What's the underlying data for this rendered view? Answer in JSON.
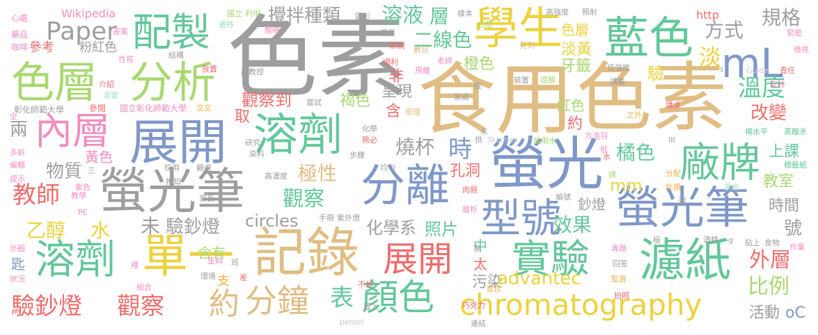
{
  "palette": {
    "gray": "#9e9e9e",
    "tan": "#e0bd83",
    "green": "#a9d871",
    "teal": "#63c79b",
    "blue": "#7f98c9",
    "pink": "#ef8ec0",
    "mint": "#a7e0c3",
    "lightgray": "#c8c8c8",
    "orange": "#f3b04a",
    "red": "#ef6d6d",
    "yellow": "#ecd23f",
    "purple": "#c89ee6",
    "sky": "#9bc8e8"
  },
  "words": [
    {
      "t": "色素",
      "c": "gray"
    },
    {
      "t": "食用",
      "c": "tan"
    },
    {
      "t": "色素",
      "c": "tan"
    },
    {
      "t": "螢光",
      "c": "blue"
    },
    {
      "t": "螢光筆",
      "c": "gray"
    },
    {
      "t": "螢光筆",
      "c": "blue"
    },
    {
      "t": "展開",
      "c": "blue"
    },
    {
      "t": "溶劑",
      "c": "teal"
    },
    {
      "t": "記錄",
      "c": "tan"
    },
    {
      "t": "單一",
      "c": "yellow"
    },
    {
      "t": "色層",
      "c": "green"
    },
    {
      "t": "分析",
      "c": "green"
    },
    {
      "t": "配製",
      "c": "teal"
    },
    {
      "t": "學生",
      "c": "yellow"
    },
    {
      "t": "藍色",
      "c": "teal"
    },
    {
      "t": "mL",
      "c": "blue"
    },
    {
      "t": "分離",
      "c": "blue"
    },
    {
      "t": "型號",
      "c": "blue"
    },
    {
      "t": "濾紙",
      "c": "teal"
    },
    {
      "t": "廠牌",
      "c": "teal"
    },
    {
      "t": "內層",
      "c": "pink"
    },
    {
      "t": "實驗",
      "c": "teal"
    },
    {
      "t": "展開",
      "c": "red"
    },
    {
      "t": "溶劑",
      "c": "teal"
    },
    {
      "t": "顏色",
      "c": "teal"
    },
    {
      "t": "分鐘",
      "c": "tan"
    },
    {
      "t": "約",
      "c": "tan"
    },
    {
      "t": "chromatography",
      "c": "yellow"
    },
    {
      "t": "Paper",
      "c": "gray"
    },
    {
      "t": "攪拌種類",
      "c": "gray"
    },
    {
      "t": "溶液",
      "c": "teal"
    },
    {
      "t": "層",
      "c": "teal"
    },
    {
      "t": "二線色",
      "c": "teal"
    },
    {
      "t": "方式",
      "c": "gray"
    },
    {
      "t": "規格",
      "c": "gray"
    },
    {
      "t": "色層",
      "c": "yellow"
    },
    {
      "t": "淡黃",
      "c": "yellow"
    },
    {
      "t": "淡",
      "c": "yellow"
    },
    {
      "t": "溫度",
      "c": "teal"
    },
    {
      "t": "改變",
      "c": "red"
    },
    {
      "t": "驗",
      "c": "yellow"
    },
    {
      "t": "牙籤",
      "c": "green"
    },
    {
      "t": "橙色",
      "c": "green"
    },
    {
      "t": "觀察到",
      "c": "red"
    },
    {
      "t": "褐色",
      "c": "green"
    },
    {
      "t": "呈現",
      "c": "gray"
    },
    {
      "t": "非",
      "c": "red"
    },
    {
      "t": "含",
      "c": "red"
    },
    {
      "t": "取",
      "c": "red"
    },
    {
      "t": "紅色",
      "c": "green"
    },
    {
      "t": "約",
      "c": "red"
    },
    {
      "t": "燒杯",
      "c": "gray"
    },
    {
      "t": "時",
      "c": "blue"
    },
    {
      "t": "橘色",
      "c": "teal"
    },
    {
      "t": "上課",
      "c": "teal"
    },
    {
      "t": "教室",
      "c": "green"
    },
    {
      "t": "時間",
      "c": "gray"
    },
    {
      "t": "號",
      "c": "gray"
    },
    {
      "t": "外層",
      "c": "red"
    },
    {
      "t": "比例",
      "c": "green"
    },
    {
      "t": "活動",
      "c": "gray"
    },
    {
      "t": "oC",
      "c": "blue"
    },
    {
      "t": "物質",
      "c": "gray"
    },
    {
      "t": "黃色",
      "c": "pink"
    },
    {
      "t": "教師",
      "c": "red"
    },
    {
      "t": "極性",
      "c": "tan"
    },
    {
      "t": "觀察",
      "c": "teal"
    },
    {
      "t": "孔洞",
      "c": "red"
    },
    {
      "t": "mm",
      "c": "yellow"
    },
    {
      "t": "效果",
      "c": "teal"
    },
    {
      "t": "鈔燈",
      "c": "gray"
    },
    {
      "t": "乙醇",
      "c": "yellow"
    },
    {
      "t": "水",
      "c": "yellow"
    },
    {
      "t": "未",
      "c": "gray"
    },
    {
      "t": "驗鈔燈",
      "c": "gray"
    },
    {
      "t": "circles",
      "c": "gray"
    },
    {
      "t": "化學系",
      "c": "gray"
    },
    {
      "t": "照片",
      "c": "teal"
    },
    {
      "t": "中",
      "c": "teal"
    },
    {
      "t": "太",
      "c": "red"
    },
    {
      "t": "污染",
      "c": "gray"
    },
    {
      "t": "表",
      "c": "teal"
    },
    {
      "t": "advantec",
      "c": "yellow"
    },
    {
      "t": "驗鈔燈",
      "c": "red"
    },
    {
      "t": "觀察",
      "c": "red"
    },
    {
      "t": "含有",
      "c": "green"
    },
    {
      "t": "支",
      "c": "orange"
    },
    {
      "t": "匙",
      "c": "blue"
    },
    {
      "t": "Wikipedia",
      "c": "pink"
    },
    {
      "t": "粉紅色",
      "c": "gray"
    },
    {
      "t": "參考",
      "c": "red"
    },
    {
      "t": "http",
      "c": "red"
    },
    {
      "t": "彰化師範大學",
      "c": "gray"
    },
    {
      "t": "國立彰化師範大學",
      "c": "pink"
    },
    {
      "t": "參閱",
      "c": "red"
    },
    {
      "t": "心處",
      "c": "pink"
    },
    {
      "t": "藥品",
      "c": "pink"
    },
    {
      "t": "咖啡",
      "c": "pink"
    },
    {
      "t": "溶液",
      "c": "teal"
    },
    {
      "t": "國立",
      "c": "green"
    },
    {
      "t": "利用",
      "c": "green"
    },
    {
      "t": "遷移",
      "c": "mint"
    },
    {
      "t": "酸梅",
      "c": "pink"
    },
    {
      "t": "圖形",
      "c": "gray"
    },
    {
      "t": "樣本",
      "c": "gray"
    },
    {
      "t": "高強度",
      "c": "gray"
    },
    {
      "t": "照射",
      "c": "gray"
    },
    {
      "t": "緊密",
      "c": "pink"
    },
    {
      "t": "微亮",
      "c": "pink"
    },
    {
      "t": "責任",
      "c": "red"
    },
    {
      "t": "Guide",
      "c": "lightgray"
    },
    {
      "t": "安排",
      "c": "pink"
    },
    {
      "t": "講桌",
      "c": "red"
    },
    {
      "t": "楊水平",
      "c": "teal"
    },
    {
      "t": "蒸餾水",
      "c": "teal"
    },
    {
      "t": "標籤紙",
      "c": "teal"
    },
    {
      "t": "黑色",
      "c": "mint"
    },
    {
      "t": "吐團",
      "c": "orange"
    },
    {
      "t": "分配",
      "c": "orange"
    },
    {
      "t": "方浩羽",
      "c": "pink"
    },
    {
      "t": "飲用水",
      "c": "green"
    },
    {
      "t": "低強度",
      "c": "gray"
    },
    {
      "t": "提醒",
      "c": "green"
    },
    {
      "t": "裝置",
      "c": "gray"
    },
    {
      "t": "見到",
      "c": "tan"
    },
    {
      "t": "順利",
      "c": "red"
    },
    {
      "t": "飛離",
      "c": "pink"
    },
    {
      "t": "老師",
      "c": "pink"
    },
    {
      "t": "家庭",
      "c": "gray"
    },
    {
      "t": "原理",
      "c": "tan"
    },
    {
      "t": "嘗試",
      "c": "gray"
    },
    {
      "t": "介紹",
      "c": "red"
    },
    {
      "t": "滴管",
      "c": "mint"
    },
    {
      "t": "交叉",
      "c": "orange"
    },
    {
      "t": "放置",
      "c": "red"
    },
    {
      "t": "副教授",
      "c": "gray"
    },
    {
      "t": "結構",
      "c": "gray"
    },
    {
      "t": "性質",
      "c": "pink"
    },
    {
      "t": "答案",
      "c": "pink"
    },
    {
      "t": "差異",
      "c": "gray"
    },
    {
      "t": "解說",
      "c": "red"
    },
    {
      "t": "數目",
      "c": "tan"
    },
    {
      "t": "研究",
      "c": "gray"
    },
    {
      "t": "染料",
      "c": "gray"
    },
    {
      "t": "步驟",
      "c": "gray"
    },
    {
      "t": "均勻",
      "c": "gray"
    },
    {
      "t": "化學",
      "c": "gray"
    },
    {
      "t": "務必",
      "c": "red"
    },
    {
      "t": "Teacher",
      "c": "lightgray"
    },
    {
      "t": "供",
      "c": "gray"
    },
    {
      "t": "高濃度",
      "c": "gray"
    },
    {
      "t": "顧慮",
      "c": "gray"
    },
    {
      "t": "採用",
      "c": "gray"
    },
    {
      "t": "推知",
      "c": "gray"
    },
    {
      "t": "家長",
      "c": "gray"
    },
    {
      "t": "紫色",
      "c": "pink"
    },
    {
      "t": "教學",
      "c": "pink"
    },
    {
      "t": "PE",
      "c": "pink"
    },
    {
      "t": "多齡",
      "c": "pink"
    },
    {
      "t": "編輯",
      "c": "pink"
    },
    {
      "t": "提示",
      "c": "pink"
    },
    {
      "t": "兩",
      "c": "gray"
    },
    {
      "t": "全",
      "c": "pink"
    },
    {
      "t": "外圈",
      "c": "pink"
    },
    {
      "t": "狀況",
      "c": "pink"
    },
    {
      "t": "組合",
      "c": "pink"
    },
    {
      "t": "環境",
      "c": "gray"
    },
    {
      "t": "歪斜",
      "c": "pink"
    },
    {
      "t": "班",
      "c": "gray"
    },
    {
      "t": "差",
      "c": "red"
    },
    {
      "t": "不易",
      "c": "red"
    },
    {
      "t": "置入",
      "c": "gray"
    },
    {
      "t": "巧克力",
      "c": "red"
    },
    {
      "t": "連結",
      "c": "gray"
    },
    {
      "t": "pentel",
      "c": "lightgray"
    },
    {
      "t": "手冊",
      "c": "gray"
    },
    {
      "t": "紫外燈",
      "c": "gray"
    },
    {
      "t": "肉眼",
      "c": "red"
    },
    {
      "t": "層析",
      "c": "pink"
    },
    {
      "t": "混合",
      "c": "orange"
    },
    {
      "t": "拍照",
      "c": "red"
    },
    {
      "t": "監督",
      "c": "orange"
    },
    {
      "t": "回答",
      "c": "gray"
    },
    {
      "t": "專題",
      "c": "pink"
    },
    {
      "t": "酒精",
      "c": "gray"
    },
    {
      "t": "食物",
      "c": "gray"
    },
    {
      "t": "貼上",
      "c": "gray"
    },
    {
      "t": "作業",
      "c": "pink"
    },
    {
      "t": "深",
      "c": "gray"
    },
    {
      "t": "極",
      "c": "gray"
    },
    {
      "t": "編號",
      "c": "gray"
    },
    {
      "t": "請",
      "c": "green"
    },
    {
      "t": "水",
      "c": "red"
    },
    {
      "t": "低",
      "c": "pink"
    },
    {
      "t": "之外",
      "c": "orange"
    },
    {
      "t": "講義",
      "c": "gray"
    },
    {
      "t": "強",
      "c": "gray"
    },
    {
      "t": "家",
      "c": "gray"
    },
    {
      "t": "末",
      "c": "gray"
    },
    {
      "t": "裡",
      "c": "pink"
    },
    {
      "t": "心蕊",
      "c": "green"
    },
    {
      "t": "s",
      "c": "gray"
    },
    {
      "t": "g",
      "c": "gray"
    },
    {
      "t": "III",
      "c": "gray"
    },
    {
      "t": "三",
      "c": "gray"
    }
  ]
}
